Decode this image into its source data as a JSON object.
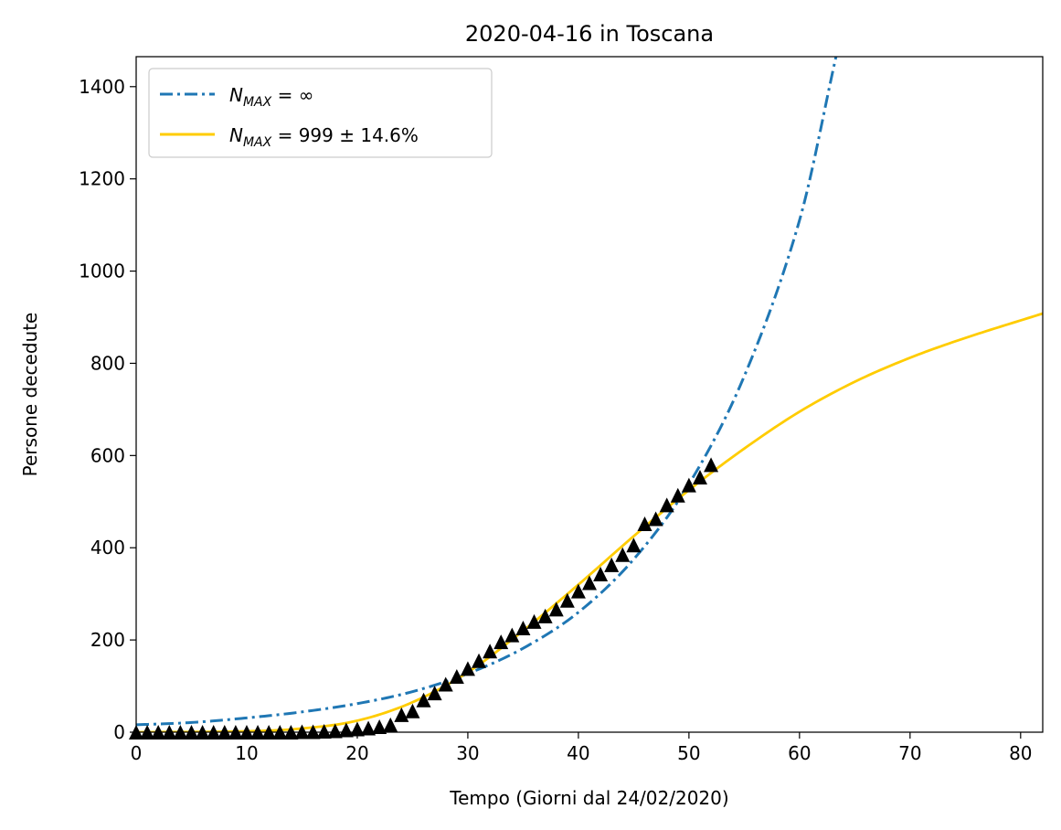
{
  "chart_data": {
    "type": "line",
    "title": "2020-04-16 in Toscana",
    "xlabel": "Tempo (Giorni dal 24/02/2020)",
    "ylabel": "Persone decedute",
    "xlim": [
      0,
      82
    ],
    "ylim": [
      0,
      1465
    ],
    "xticks": [
      0,
      10,
      20,
      30,
      40,
      50,
      60,
      70,
      80
    ],
    "yticks": [
      0,
      200,
      400,
      600,
      800,
      1000,
      1200,
      1400
    ],
    "grid": false,
    "legend_position": "top-left",
    "legend": [
      {
        "symbol": "N",
        "subscript": "MAX",
        "rest": " = ∞",
        "style": "dashdot",
        "color": "#1f77b4"
      },
      {
        "symbol": "N",
        "subscript": "MAX",
        "rest": " = 999 ± 14.6%",
        "style": "solid",
        "color": "#ffcc00"
      }
    ],
    "series": [
      {
        "style": "dashdot",
        "color": "#1f77b4",
        "model": "exponential",
        "x": [
          0,
          5,
          10,
          15,
          20,
          25,
          30,
          35,
          40,
          45,
          50,
          55,
          60,
          63.3
        ],
        "y": [
          16,
          21,
          31,
          44,
          62,
          88,
          127,
          182,
          260,
          375,
          538,
          772,
          1110,
          1465
        ]
      },
      {
        "style": "solid",
        "color": "#ffcc00",
        "model": "logistic",
        "x": [
          0,
          10,
          15,
          20,
          25,
          30,
          35,
          40,
          45,
          50,
          55,
          60,
          65,
          70,
          75,
          82
        ],
        "y": [
          0,
          2,
          8,
          25,
          65,
          130,
          220,
          320,
          425,
          525,
          615,
          695,
          760,
          812,
          855,
          908
        ]
      },
      {
        "style": "markers",
        "marker": "triangle-up",
        "color": "#000000",
        "x": [
          0,
          1,
          2,
          3,
          4,
          5,
          6,
          7,
          8,
          9,
          10,
          11,
          12,
          13,
          14,
          15,
          16,
          17,
          18,
          19,
          20,
          21,
          22,
          23,
          24,
          25,
          26,
          27,
          28,
          29,
          30,
          31,
          32,
          33,
          34,
          35,
          36,
          37,
          38,
          39,
          40,
          41,
          42,
          43,
          44,
          45,
          46,
          47,
          48,
          49,
          50,
          51,
          52
        ],
        "y": [
          0,
          0,
          0,
          0,
          0,
          0,
          0,
          0,
          0,
          0,
          0,
          0,
          0,
          0,
          0,
          1,
          1,
          2,
          3,
          5,
          7,
          9,
          12,
          16,
          38,
          46,
          70,
          85,
          104,
          121,
          138,
          155,
          176,
          196,
          211,
          226,
          240,
          252,
          267,
          286,
          306,
          324,
          343,
          363,
          385,
          406,
          452,
          463,
          493,
          514,
          536,
          553,
          580
        ]
      }
    ]
  }
}
